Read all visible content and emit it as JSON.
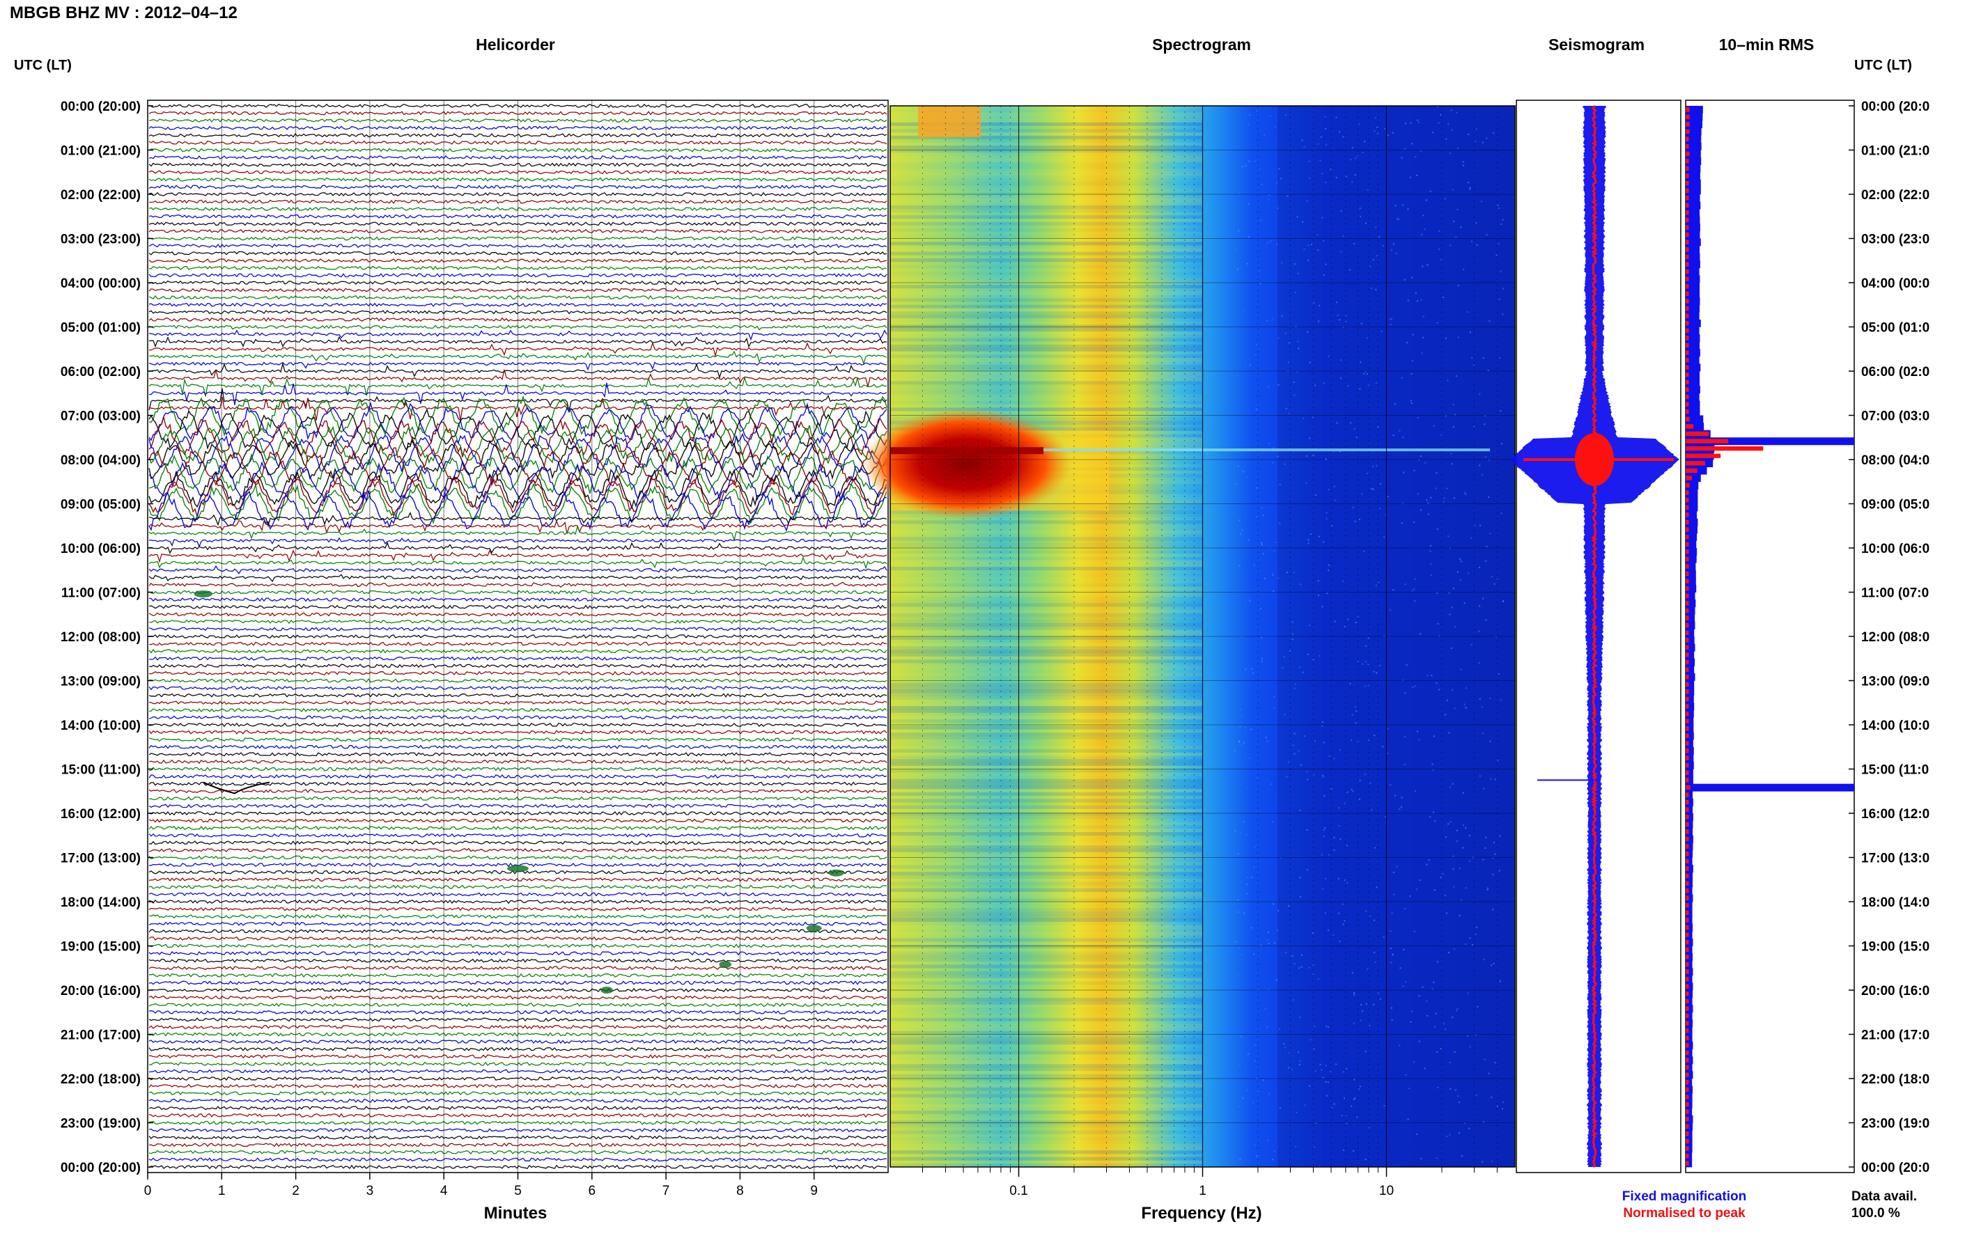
{
  "header": {
    "title": "MBGB BHZ MV : 2012–04–12"
  },
  "panels": {
    "helicorder": "Helicorder",
    "spectrogram": "Spectrogram",
    "seismogram": "Seismogram",
    "rms": "10–min RMS"
  },
  "axis": {
    "time_header_left": "UTC (LT)",
    "time_header_right": "UTC (LT)",
    "minutes_label": "Minutes",
    "frequency_label": "Frequency (Hz)",
    "minutes_ticks": [
      "0",
      "1",
      "2",
      "3",
      "4",
      "5",
      "6",
      "7",
      "8",
      "9"
    ],
    "frequency_ticks": [
      "0.1",
      "1",
      "10"
    ]
  },
  "legend": {
    "fixed": "Fixed magnification",
    "normalised": "Normalised to peak",
    "fixed_color": "#1010ee",
    "normalised_color": "#ee1010"
  },
  "data_avail": {
    "label": "Data avail.",
    "value": "100.0 %"
  },
  "colors": {
    "trace_colors": [
      "#000000",
      "#8b0000",
      "#008000",
      "#0000cc"
    ]
  },
  "chart_data": {
    "type": "heatmap",
    "time_labels": [
      "00:00 (20:00)",
      "01:00 (21:00)",
      "02:00 (22:00)",
      "03:00 (23:00)",
      "04:00 (00:00)",
      "05:00 (01:00)",
      "06:00 (02:00)",
      "07:00 (03:00)",
      "08:00 (04:00)",
      "09:00 (05:00)",
      "10:00 (06:00)",
      "11:00 (07:00)",
      "12:00 (08:00)",
      "13:00 (09:00)",
      "14:00 (10:00)",
      "15:00 (11:00)",
      "16:00 (12:00)",
      "17:00 (13:00)",
      "18:00 (14:00)",
      "19:00 (15:00)",
      "20:00 (16:00)",
      "21:00 (17:00)",
      "22:00 (18:00)",
      "23:00 (19:00)",
      "00:00 (20:00)"
    ],
    "time_labels_right": [
      "00:00 (20:0",
      "01:00 (21:0",
      "02:00 (22:0",
      "03:00 (23:0",
      "04:00 (00:0",
      "05:00 (01:0",
      "06:00 (02:0",
      "07:00 (03:0",
      "08:00 (04:0",
      "09:00 (05:0",
      "10:00 (06:0",
      "11:00 (07:0",
      "12:00 (08:0",
      "13:00 (09:0",
      "14:00 (10:0",
      "15:00 (11:0",
      "16:00 (12:0",
      "17:00 (13:0",
      "18:00 (14:0",
      "19:00 (15:0",
      "20:00 (16:0",
      "21:00 (17:0",
      "22:00 (18:0",
      "23:00 (19:0",
      "00:00 (20:0"
    ],
    "minutes_range": [
      0,
      10
    ],
    "frequency_range_hz": [
      0.02,
      50
    ],
    "frequency_scale": "log",
    "event_utc_hours": [
      7.5,
      9.0
    ],
    "spike_utc_hour": 15.25,
    "rms_fixed_relative": [
      0.57,
      0.56,
      0.55,
      0.52,
      0.51,
      0.52,
      0.5,
      0.51,
      0.49,
      0.48,
      0.5,
      0.5,
      0.47,
      0.49,
      0.46,
      0.47,
      0.48,
      0.47,
      0.5,
      0.46,
      0.47,
      0.48,
      0.45,
      0.47,
      0.46,
      0.46,
      0.47,
      0.46,
      0.45,
      0.5,
      0.45,
      0.47,
      0.46,
      0.48,
      0.45,
      0.49,
      0.46,
      0.46,
      0.48,
      0.45,
      0.47,
      0.47,
      0.58,
      0.6,
      0.82,
      0.98,
      0.95,
      0.93,
      0.9,
      0.7,
      0.5,
      0.42,
      0.4,
      0.4,
      0.4,
      0.37,
      0.4,
      0.39,
      0.37,
      0.35,
      0.37,
      0.36,
      0.33,
      0.34,
      0.34,
      0.35,
      0.31,
      0.33,
      0.31,
      0.3,
      0.31,
      0.28,
      0.29,
      0.31,
      0.28,
      0.3,
      0.28,
      0.31,
      0.28,
      0.28,
      0.27,
      0.28,
      0.27,
      0.26,
      0.26,
      0.27,
      0.25,
      0.27,
      0.26,
      0.27,
      0.25,
      0.25,
      1.0,
      0.23,
      0.25,
      0.23,
      0.25,
      0.24,
      0.23,
      0.25,
      0.24,
      0.23,
      0.22,
      0.25,
      0.23,
      0.23,
      0.22,
      0.24,
      0.22,
      0.22,
      0.22,
      0.23,
      0.22,
      0.24,
      0.22,
      0.23,
      0.22,
      0.24,
      0.22,
      0.24,
      0.23,
      0.22,
      0.24,
      0.22,
      0.23,
      0.22,
      0.22,
      0.24,
      0.22,
      0.24,
      0.22,
      0.24,
      0.21,
      0.23,
      0.22,
      0.22,
      0.21,
      0.24,
      0.23,
      0.22,
      0.22,
      0.22,
      0.21,
      0.21
    ],
    "rms_normalised_relative": [
      0.05,
      0.05,
      0.05,
      0.05,
      0.04,
      0.04,
      0.05,
      0.04,
      0.04,
      0.04,
      0.04,
      0.04,
      0.04,
      0.04,
      0.04,
      0.04,
      0.04,
      0.04,
      0.04,
      0.04,
      0.04,
      0.04,
      0.04,
      0.04,
      0.04,
      0.04,
      0.04,
      0.04,
      0.04,
      0.04,
      0.04,
      0.04,
      0.04,
      0.04,
      0.04,
      0.04,
      0.04,
      0.04,
      0.04,
      0.04,
      0.04,
      0.04,
      0.05,
      0.1,
      0.3,
      0.55,
      1.0,
      0.45,
      0.25,
      0.15,
      0.08,
      0.05,
      0.04,
      0.04,
      0.04,
      0.04,
      0.04,
      0.04,
      0.04,
      0.04,
      0.04,
      0.04,
      0.04,
      0.04,
      0.04,
      0.04,
      0.04,
      0.04,
      0.04,
      0.04,
      0.04,
      0.04,
      0.04,
      0.04,
      0.04,
      0.04,
      0.04,
      0.04,
      0.04,
      0.04,
      0.04,
      0.04,
      0.04,
      0.04,
      0.04,
      0.04,
      0.04,
      0.04,
      0.04,
      0.04,
      0.04,
      0.04,
      0.06,
      0.04,
      0.04,
      0.04,
      0.04,
      0.04,
      0.04,
      0.04,
      0.04,
      0.04,
      0.04,
      0.04,
      0.04,
      0.04,
      0.04,
      0.04,
      0.04,
      0.04,
      0.04,
      0.04,
      0.04,
      0.04,
      0.04,
      0.04,
      0.04,
      0.04,
      0.04,
      0.04,
      0.04,
      0.04,
      0.04,
      0.04,
      0.04,
      0.04,
      0.04,
      0.04,
      0.04,
      0.04,
      0.04,
      0.04,
      0.04,
      0.04,
      0.04,
      0.04,
      0.04,
      0.04,
      0.04,
      0.04,
      0.04,
      0.04,
      0.04,
      0.04
    ]
  }
}
